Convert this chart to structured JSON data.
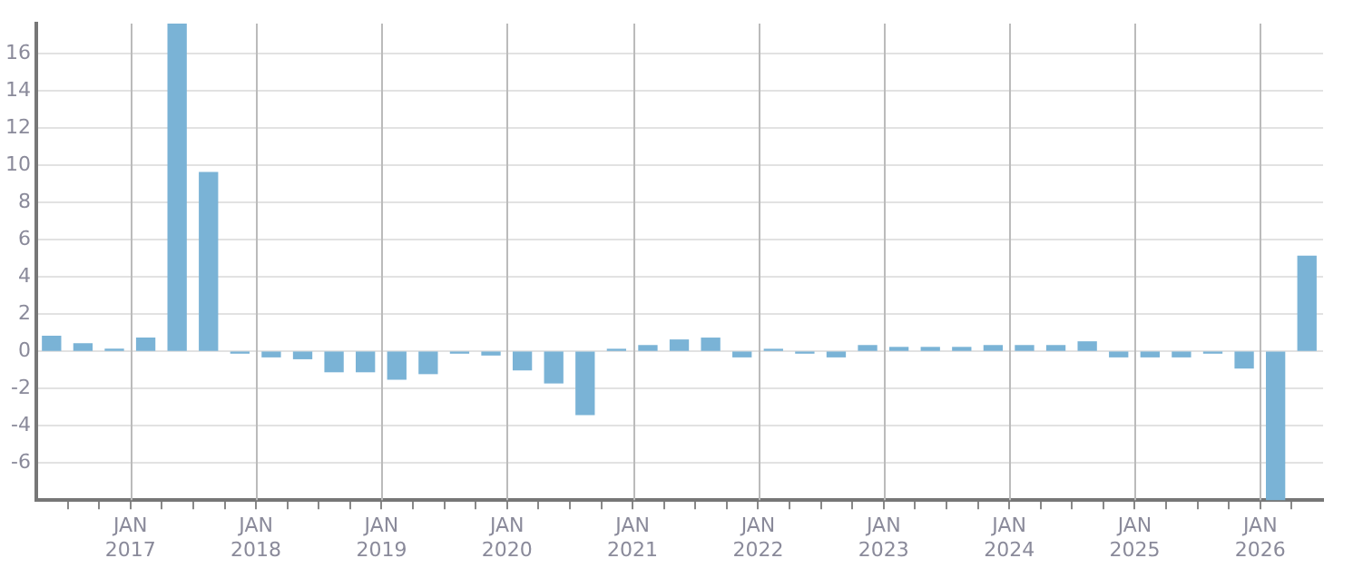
{
  "chart_data": {
    "type": "bar",
    "color": "#7ab3d6",
    "x": [
      "2016-05-15",
      "2016-08-15",
      "2016-11-15",
      "2017-02-15",
      "2017-05-15",
      "2017-08-15",
      "2017-11-15",
      "2018-02-15",
      "2018-05-15",
      "2018-08-15",
      "2018-11-15",
      "2019-02-15",
      "2019-05-15",
      "2019-08-15",
      "2019-11-15",
      "2020-02-15",
      "2020-05-15",
      "2020-08-15",
      "2020-11-15",
      "2021-02-15",
      "2021-05-15",
      "2021-08-15",
      "2021-11-15",
      "2022-02-15",
      "2022-05-15",
      "2022-08-15",
      "2022-11-15",
      "2023-02-15",
      "2023-05-15",
      "2023-08-15",
      "2023-11-15",
      "2024-02-15",
      "2024-05-15",
      "2024-08-15",
      "2024-11-15",
      "2025-02-15",
      "2025-05-15",
      "2025-08-15",
      "2025-11-15",
      "2026-02-15",
      "2026-05-15"
    ],
    "values": [
      0.8,
      0.4,
      0.1,
      0.7,
      17.6,
      9.6,
      -0.1,
      -0.3,
      -0.4,
      -1.1,
      -1.1,
      -1.5,
      -1.2,
      -0.1,
      -0.2,
      -1,
      -1.7,
      -3.4,
      0.1,
      0.3,
      0.6,
      0.7,
      -0.3,
      0.1,
      -0.1,
      -0.3,
      0.3,
      0.2,
      0.2,
      0.2,
      0.3,
      0.3,
      0.3,
      0.5,
      -0.3,
      -0.3,
      -0.3,
      -0.1,
      -0.9,
      -8,
      5.1
    ],
    "xlim": [
      "2016-04-01",
      "2026-07-01"
    ],
    "xticks": [
      {
        "value": "2016-07",
        "label": null
      },
      {
        "value": "2016-10",
        "label": null
      },
      {
        "value": "2017-01",
        "label": "JAN 2017"
      },
      {
        "value": "2017-04",
        "label": null
      },
      {
        "value": "2017-07",
        "label": null
      },
      {
        "value": "2017-10",
        "label": null
      },
      {
        "value": "2018-01",
        "label": "JAN 2018"
      },
      {
        "value": "2018-04",
        "label": null
      },
      {
        "value": "2018-07",
        "label": null
      },
      {
        "value": "2018-10",
        "label": null
      },
      {
        "value": "2019-01",
        "label": "JAN 2019"
      },
      {
        "value": "2019-04",
        "label": null
      },
      {
        "value": "2019-07",
        "label": null
      },
      {
        "value": "2019-10",
        "label": null
      },
      {
        "value": "2020-01",
        "label": "JAN 2020"
      },
      {
        "value": "2020-04",
        "label": null
      },
      {
        "value": "2020-07",
        "label": null
      },
      {
        "value": "2020-10",
        "label": null
      },
      {
        "value": "2021-01",
        "label": "JAN 2021"
      },
      {
        "value": "2021-04",
        "label": null
      },
      {
        "value": "2021-07",
        "label": null
      },
      {
        "value": "2021-10",
        "label": null
      },
      {
        "value": "2022-01",
        "label": "JAN 2022"
      },
      {
        "value": "2022-04",
        "label": null
      },
      {
        "value": "2022-07",
        "label": null
      },
      {
        "value": "2022-10",
        "label": null
      },
      {
        "value": "2023-01",
        "label": "JAN 2023"
      },
      {
        "value": "2023-04",
        "label": null
      },
      {
        "value": "2023-07",
        "label": null
      },
      {
        "value": "2023-10",
        "label": null
      },
      {
        "value": "2024-01",
        "label": "JAN 2024"
      },
      {
        "value": "2024-04",
        "label": null
      },
      {
        "value": "2024-07",
        "label": null
      },
      {
        "value": "2024-10",
        "label": null
      },
      {
        "value": "2025-01",
        "label": "JAN 2025"
      },
      {
        "value": "2025-04",
        "label": null
      },
      {
        "value": "2025-07",
        "label": null
      },
      {
        "value": "2025-10",
        "label": null
      },
      {
        "value": "2026-01",
        "label": "JAN 2026"
      },
      {
        "value": "2026-04",
        "label": null
      }
    ],
    "ylim": [
      -8,
      17.6
    ],
    "yticks": [
      -6,
      -4,
      -2,
      0,
      2,
      4,
      6,
      8,
      10,
      12,
      14,
      16
    ],
    "grid": true
  }
}
